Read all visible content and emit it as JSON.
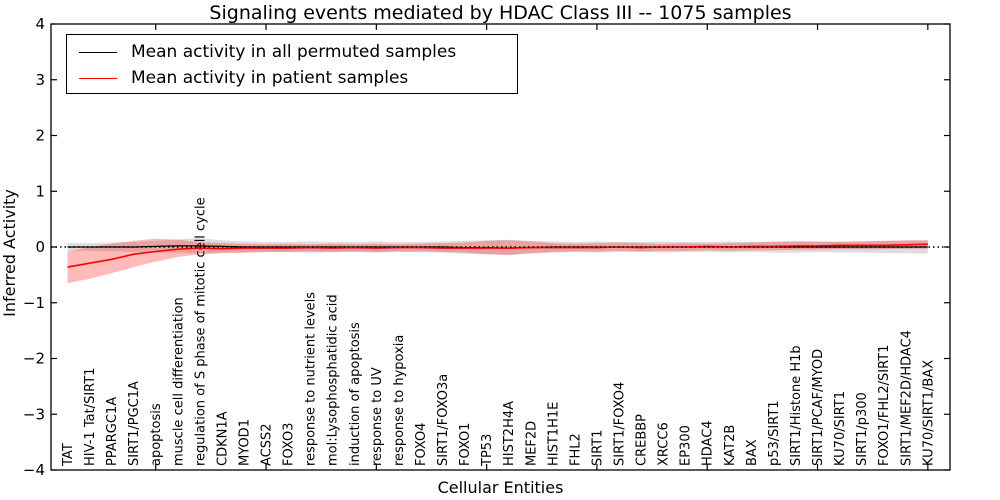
{
  "chart_data": {
    "type": "line",
    "title": "Signaling events mediated by HDAC Class III -- 1075 samples",
    "xlabel": "Cellular Entities",
    "ylabel": "Inferred Activity",
    "ylim": [
      -4,
      4
    ],
    "yticks": [
      -4,
      -3,
      -2,
      -1,
      0,
      1,
      2,
      3,
      4
    ],
    "x_major_tick_values": [
      5,
      10,
      15,
      20,
      25,
      30,
      35,
      40
    ],
    "grid": false,
    "zero_line": {
      "value": 0,
      "style": "dotted",
      "color": "#000000"
    },
    "legend_position": "upper left",
    "categories": [
      "TAT",
      "HIV-1 Tat/SIRT1",
      "PPARGC1A",
      "SIRT1/PGC1A",
      "apoptosis",
      "muscle cell differentiation",
      "regulation of S phase of mitotic cell cycle",
      "CDKN1A",
      "MYOD1",
      "ACSS2",
      "FOXO3",
      "response to nutrient levels",
      "mol:Lysophosphatidic acid",
      "induction of apoptosis",
      "response to UV",
      "response to hypoxia",
      "FOXO4",
      "SIRT1/FOXO3a",
      "FOXO1",
      "TP53",
      "HIST2H4A",
      "MEF2D",
      "HIST1H1E",
      "FHL2",
      "SIRT1",
      "SIRT1/FOXO4",
      "CREBBP",
      "XRCC6",
      "EP300",
      "HDAC4",
      "KAT2B",
      "BAX",
      "p53/SIRT1",
      "SIRT1/Histone H1b",
      "SIRT1/PCAF/MYOD",
      "KU70/SIRT1",
      "SIRT1/p300",
      "FOXO1/FHL2/SIRT1",
      "SIRT1/MEF2D/HDAC4",
      "KU70/SIRT1/BAX"
    ],
    "series": [
      {
        "name": "Mean activity in all permuted samples",
        "color": "#000000",
        "values": [
          0,
          0,
          0,
          0,
          0.01,
          0.02,
          0.02,
          0.01,
          0,
          0,
          0,
          0,
          0,
          0,
          0,
          0,
          0,
          0,
          -0.01,
          -0.01,
          -0.02,
          -0.01,
          0,
          0,
          0,
          0,
          0,
          0,
          0,
          0,
          0,
          0,
          0,
          0,
          0,
          0,
          0,
          0,
          0,
          0
        ],
        "band": {
          "color": "rgba(0,0,0,0.13)",
          "upper": [
            0.07,
            0.07,
            0.08,
            0.09,
            0.11,
            0.14,
            0.16,
            0.12,
            0.1,
            0.09,
            0.09,
            0.1,
            0.09,
            0.09,
            0.1,
            0.09,
            0.09,
            0.1,
            0.11,
            0.12,
            0.13,
            0.11,
            0.1,
            0.09,
            0.1,
            0.09,
            0.09,
            0.1,
            0.09,
            0.09,
            0.1,
            0.09,
            0.1,
            0.1,
            0.09,
            0.1,
            0.1,
            0.11,
            0.11,
            0.12
          ],
          "lower": [
            -0.07,
            -0.07,
            -0.08,
            -0.09,
            -0.1,
            -0.1,
            -0.12,
            -0.1,
            -0.1,
            -0.09,
            -0.09,
            -0.1,
            -0.09,
            -0.09,
            -0.1,
            -0.09,
            -0.09,
            -0.1,
            -0.12,
            -0.13,
            -0.15,
            -0.12,
            -0.1,
            -0.09,
            -0.1,
            -0.09,
            -0.09,
            -0.1,
            -0.09,
            -0.09,
            -0.1,
            -0.09,
            -0.1,
            -0.1,
            -0.09,
            -0.1,
            -0.1,
            -0.11,
            -0.11,
            -0.12
          ]
        }
      },
      {
        "name": "Mean activity in patient samples",
        "color": "#ff0000",
        "values": [
          -0.36,
          -0.29,
          -0.22,
          -0.13,
          -0.08,
          -0.04,
          -0.02,
          -0.03,
          -0.02,
          -0.02,
          -0.02,
          -0.01,
          -0.02,
          -0.01,
          -0.02,
          -0.01,
          -0.01,
          -0.02,
          -0.02,
          -0.02,
          -0.02,
          -0.01,
          -0.01,
          -0.01,
          -0.01,
          0,
          -0.01,
          0,
          0,
          0.01,
          0,
          0.01,
          0.01,
          0.02,
          0.02,
          0.03,
          0.03,
          0.03,
          0.04,
          0.05
        ],
        "band": {
          "color": "rgba(255,0,0,0.27)",
          "upper": [
            -0.08,
            0.0,
            0.06,
            0.11,
            0.15,
            0.13,
            0.09,
            0.07,
            0.06,
            0.05,
            0.06,
            0.05,
            0.06,
            0.05,
            0.06,
            0.05,
            0.06,
            0.07,
            0.08,
            0.11,
            0.12,
            0.1,
            0.07,
            0.06,
            0.07,
            0.08,
            0.07,
            0.06,
            0.07,
            0.06,
            0.07,
            0.08,
            0.09,
            0.1,
            0.1,
            0.09,
            0.1,
            0.11,
            0.12,
            0.12
          ],
          "lower": [
            -0.65,
            -0.57,
            -0.47,
            -0.36,
            -0.26,
            -0.18,
            -0.13,
            -0.11,
            -0.1,
            -0.09,
            -0.09,
            -0.08,
            -0.09,
            -0.08,
            -0.09,
            -0.08,
            -0.08,
            -0.09,
            -0.1,
            -0.13,
            -0.14,
            -0.11,
            -0.09,
            -0.08,
            -0.08,
            -0.07,
            -0.08,
            -0.07,
            -0.07,
            -0.06,
            -0.07,
            -0.06,
            -0.06,
            -0.05,
            -0.05,
            -0.04,
            -0.04,
            -0.04,
            -0.03,
            -0.03
          ]
        }
      }
    ]
  }
}
